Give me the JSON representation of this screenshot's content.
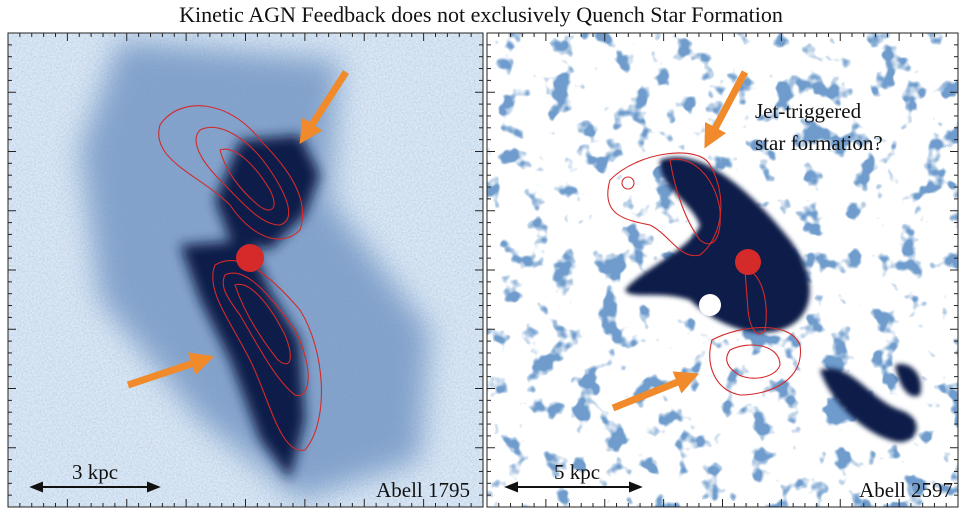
{
  "title": "Kinetic AGN Feedback does not exclusively Quench Star Formation",
  "panels": [
    {
      "name": "Abell 1795",
      "scale_label": "3 kpc"
    },
    {
      "name": "Abell 2597",
      "scale_label": "5 kpc",
      "annotation": [
        "Jet-triggered",
        "star formation?"
      ]
    }
  ]
}
